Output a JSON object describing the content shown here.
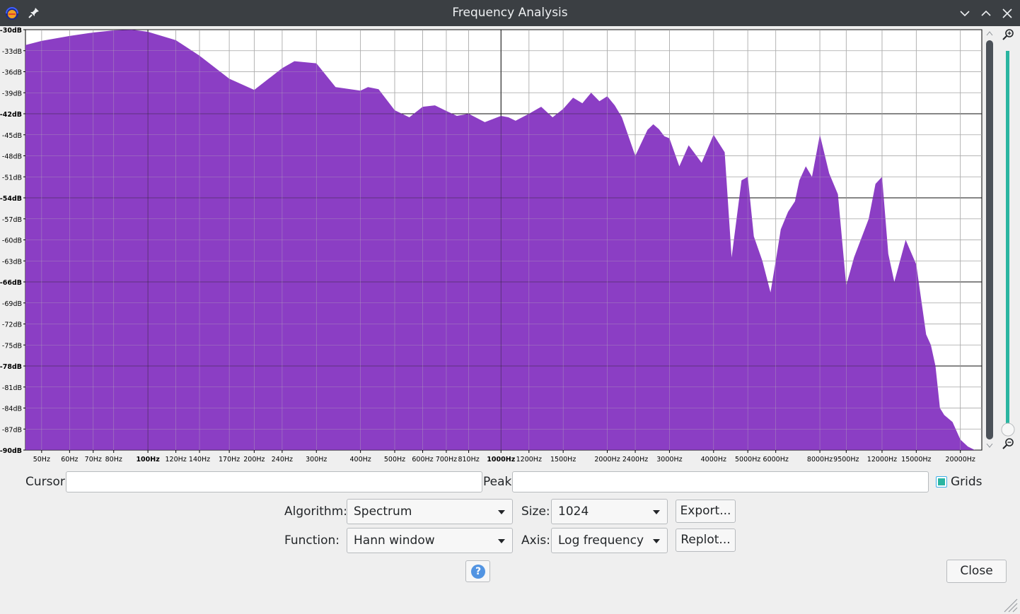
{
  "window": {
    "title": "Frequency Analysis",
    "icons": [
      "audacity-app-icon",
      "pin-icon",
      "minimize-icon",
      "maximize-icon",
      "close-icon"
    ]
  },
  "graph": {
    "y_ticks": [
      "-30dB",
      "-33dB",
      "-36dB",
      "-39dB",
      "-42dB",
      "-45dB",
      "-48dB",
      "-51dB",
      "-54dB",
      "-57dB",
      "-60dB",
      "-63dB",
      "-66dB",
      "-69dB",
      "-72dB",
      "-75dB",
      "-78dB",
      "-81dB",
      "-84dB",
      "-87dB",
      "-90dB"
    ],
    "x_ticks": [
      "50Hz",
      "60Hz",
      "70Hz",
      "80Hz",
      "100Hz",
      "120Hz",
      "140Hz",
      "170Hz",
      "200Hz",
      "240Hz",
      "300Hz",
      "400Hz",
      "500Hz",
      "600Hz",
      "700Hz",
      "810Hz",
      "1000Hz",
      "1200Hz",
      "1500Hz",
      "2000Hz",
      "2400Hz",
      "3000Hz",
      "4000Hz",
      "5000Hz",
      "6000Hz",
      "8000Hz",
      "9500Hz",
      "12000Hz",
      "15000Hz",
      "20000Hz"
    ],
    "fill_color": "#8b3ec4",
    "zoom_in_icon": "zoom-in-icon",
    "zoom_out_icon": "zoom-out-icon"
  },
  "controls": {
    "cursor_label": "Cursor:",
    "cursor_value": "",
    "peak_label": "Peak:",
    "peak_value": "",
    "grids_label": "Grids",
    "grids_checked": true,
    "algorithm_label": "Algorithm:",
    "algorithm_value": "Spectrum",
    "size_label": "Size:",
    "size_value": "1024",
    "export_label": "Export...",
    "function_label": "Function:",
    "function_value": "Hann window",
    "axis_label": "Axis:",
    "axis_value": "Log frequency",
    "replot_label": "Replot...",
    "help_label": "?",
    "close_label": "Close"
  },
  "chart_data": {
    "type": "area",
    "xlabel": "",
    "ylabel": "",
    "x_scale": "log",
    "xlim": [
      45,
      23000
    ],
    "ylim": [
      -90,
      -30
    ],
    "grid": true,
    "x": [
      45,
      50,
      60,
      70,
      80,
      90,
      100,
      120,
      140,
      170,
      200,
      240,
      260,
      300,
      340,
      400,
      420,
      450,
      500,
      550,
      600,
      650,
      700,
      750,
      810,
      900,
      1000,
      1050,
      1100,
      1200,
      1300,
      1400,
      1500,
      1600,
      1700,
      1800,
      1900,
      2000,
      2100,
      2200,
      2400,
      2600,
      2700,
      2800,
      2900,
      3000,
      3200,
      3400,
      3700,
      4000,
      4300,
      4500,
      4800,
      5000,
      5200,
      5500,
      5800,
      6000,
      6200,
      6500,
      6800,
      7000,
      7300,
      7600,
      8000,
      8500,
      9000,
      9500,
      10000,
      11000,
      11500,
      12000,
      12500,
      13000,
      14000,
      15000,
      16000,
      16500,
      17000,
      17500,
      18000,
      19000,
      20000,
      21000,
      22000,
      23000
    ],
    "y": [
      -32.2,
      -31.6,
      -30.9,
      -30.4,
      -30.1,
      -30.0,
      -30.3,
      -31.5,
      -33.7,
      -37.0,
      -38.6,
      -35.5,
      -34.5,
      -34.8,
      -38.2,
      -38.7,
      -38.2,
      -38.5,
      -41.5,
      -42.5,
      -41.0,
      -40.8,
      -41.6,
      -42.3,
      -42.0,
      -43.2,
      -42.3,
      -42.5,
      -43.0,
      -42.0,
      -41.0,
      -42.5,
      -41.3,
      -39.7,
      -40.5,
      -39.0,
      -40.2,
      -39.5,
      -40.8,
      -42.5,
      -48.0,
      -44.3,
      -43.5,
      -44.2,
      -45.2,
      -45.5,
      -49.5,
      -46.5,
      -49.0,
      -45.0,
      -47.5,
      -62.5,
      -51.5,
      -51.0,
      -59.5,
      -63.0,
      -67.5,
      -63.0,
      -58.5,
      -56.0,
      -54.5,
      -51.5,
      -49.5,
      -51.0,
      -45.0,
      -50.5,
      -53.5,
      -66.5,
      -62.5,
      -57.0,
      -52.0,
      -51.0,
      -62.0,
      -66.0,
      -60.0,
      -63.5,
      -73.5,
      -75.0,
      -78.0,
      -84.0,
      -85.0,
      -86.0,
      -88.5,
      -89.5,
      -90.0,
      -90.0
    ]
  }
}
